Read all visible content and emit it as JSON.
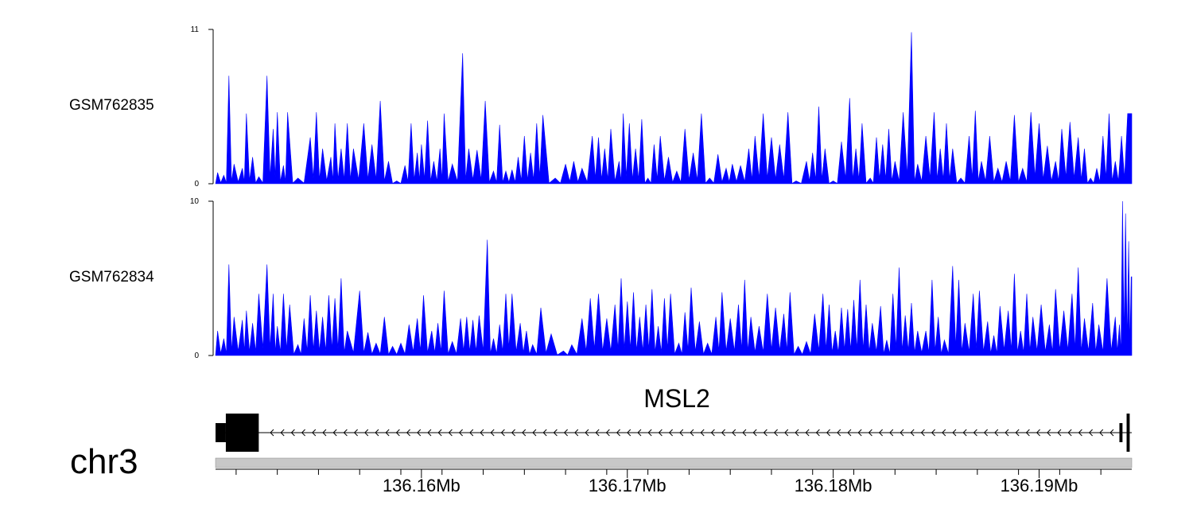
{
  "chart_data": {
    "type": "area",
    "chromosome": "chr3",
    "gene": "MSL2",
    "xlim": [
      136150000,
      136194500
    ],
    "x_ticks": [
      136160000,
      136170000,
      136180000,
      136190000
    ],
    "x_tick_labels": [
      "136.16Mb",
      "136.17Mb",
      "136.18Mb",
      "136.19Mb"
    ],
    "series_color": "#0000ff",
    "series": [
      {
        "name": "GSM762835",
        "ylim": [
          0,
          11
        ],
        "y_tick_labels": [
          "0",
          "11"
        ],
        "peaks": [
          [
            136150100,
            0.8
          ],
          [
            136150400,
            0.6
          ],
          [
            136150650,
            7.7
          ],
          [
            136150900,
            1.4
          ],
          [
            136151300,
            1.1
          ],
          [
            136151500,
            5.0
          ],
          [
            136151800,
            1.9
          ],
          [
            136152100,
            0.5
          ],
          [
            136152500,
            7.7
          ],
          [
            136152800,
            3.9
          ],
          [
            136153000,
            5.1
          ],
          [
            136153300,
            1.3
          ],
          [
            136153500,
            5.1
          ],
          [
            136154000,
            0.4
          ],
          [
            136154600,
            3.3
          ],
          [
            136154900,
            5.1
          ],
          [
            136155200,
            2.5
          ],
          [
            136155600,
            1.9
          ],
          [
            136155800,
            4.3
          ],
          [
            136156100,
            2.5
          ],
          [
            136156400,
            4.3
          ],
          [
            136156700,
            2.5
          ],
          [
            136157200,
            4.3
          ],
          [
            136157600,
            2.8
          ],
          [
            136158000,
            5.9
          ],
          [
            136158400,
            1.6
          ],
          [
            136158800,
            0.2
          ],
          [
            136159200,
            1.3
          ],
          [
            136159500,
            4.3
          ],
          [
            136159800,
            2.2
          ],
          [
            136160000,
            2.8
          ],
          [
            136160300,
            4.5
          ],
          [
            136160600,
            1.6
          ],
          [
            136160900,
            2.5
          ],
          [
            136161100,
            5.0
          ],
          [
            136161500,
            1.4
          ],
          [
            136162000,
            9.3
          ],
          [
            136162300,
            2.5
          ],
          [
            136162700,
            2.4
          ],
          [
            136163100,
            5.9
          ],
          [
            136163500,
            0.9
          ],
          [
            136163800,
            4.2
          ],
          [
            136164100,
            0.9
          ],
          [
            136164400,
            1.0
          ],
          [
            136164700,
            1.9
          ],
          [
            136165000,
            3.4
          ],
          [
            136165300,
            2.2
          ],
          [
            136165600,
            4.3
          ],
          [
            136165900,
            4.9
          ],
          [
            136166500,
            0.4
          ],
          [
            136167000,
            1.4
          ],
          [
            136167400,
            1.6
          ],
          [
            136167800,
            1.1
          ],
          [
            136168300,
            3.4
          ],
          [
            136168600,
            3.3
          ],
          [
            136168900,
            2.5
          ],
          [
            136169200,
            3.9
          ],
          [
            136169600,
            1.6
          ],
          [
            136169800,
            5.0
          ],
          [
            136170100,
            4.3
          ],
          [
            136170400,
            2.5
          ],
          [
            136170700,
            4.6
          ],
          [
            136171000,
            0.4
          ],
          [
            136171300,
            2.8
          ],
          [
            136171600,
            3.4
          ],
          [
            136172000,
            1.9
          ],
          [
            136172400,
            0.9
          ],
          [
            136172800,
            3.9
          ],
          [
            136173200,
            2.2
          ],
          [
            136173600,
            5.0
          ],
          [
            136174000,
            0.4
          ],
          [
            136174400,
            2.1
          ],
          [
            136174800,
            1.1
          ],
          [
            136175100,
            1.4
          ],
          [
            136175500,
            1.3
          ],
          [
            136175900,
            2.5
          ],
          [
            136176200,
            3.4
          ],
          [
            136176600,
            5.0
          ],
          [
            136177000,
            3.3
          ],
          [
            136177400,
            2.8
          ],
          [
            136177800,
            5.1
          ],
          [
            136178200,
            0.2
          ],
          [
            136178700,
            1.6
          ],
          [
            136179000,
            2.2
          ],
          [
            136179300,
            5.5
          ],
          [
            136179600,
            2.5
          ],
          [
            136180000,
            0.2
          ],
          [
            136180400,
            3.0
          ],
          [
            136180800,
            6.1
          ],
          [
            136181100,
            2.5
          ],
          [
            136181400,
            4.3
          ],
          [
            136181800,
            0.4
          ],
          [
            136182100,
            3.3
          ],
          [
            136182400,
            2.8
          ],
          [
            136182700,
            3.9
          ],
          [
            136183000,
            1.6
          ],
          [
            136183400,
            5.1
          ],
          [
            136183800,
            10.8
          ],
          [
            136184100,
            1.4
          ],
          [
            136184500,
            3.4
          ],
          [
            136184900,
            5.1
          ],
          [
            136185200,
            2.5
          ],
          [
            136185500,
            4.3
          ],
          [
            136185800,
            2.5
          ],
          [
            136186200,
            0.4
          ],
          [
            136186600,
            3.4
          ],
          [
            136186900,
            5.2
          ],
          [
            136187200,
            1.6
          ],
          [
            136187600,
            3.4
          ],
          [
            136188000,
            1.1
          ],
          [
            136188400,
            1.6
          ],
          [
            136188800,
            4.9
          ],
          [
            136189200,
            1.1
          ],
          [
            136189600,
            5.1
          ],
          [
            136190000,
            4.3
          ],
          [
            136190400,
            2.7
          ],
          [
            136190800,
            1.6
          ],
          [
            136191100,
            3.9
          ],
          [
            136191500,
            4.4
          ],
          [
            136191900,
            3.3
          ],
          [
            136192200,
            2.5
          ],
          [
            136192500,
            0.4
          ],
          [
            136192800,
            1.1
          ],
          [
            136193100,
            3.4
          ],
          [
            136193400,
            5.0
          ],
          [
            136193700,
            1.6
          ],
          [
            136194000,
            3.4
          ],
          [
            136194300,
            5.0
          ]
        ]
      },
      {
        "name": "GSM762834",
        "ylim": [
          0,
          10
        ],
        "y_tick_labels": [
          "0",
          "10"
        ],
        "peaks": [
          [
            136150100,
            1.6
          ],
          [
            136150400,
            1.1
          ],
          [
            136150650,
            5.9
          ],
          [
            136150900,
            2.5
          ],
          [
            136151300,
            2.3
          ],
          [
            136151500,
            2.9
          ],
          [
            136151800,
            2.1
          ],
          [
            136152100,
            4.0
          ],
          [
            136152500,
            5.9
          ],
          [
            136152800,
            4.0
          ],
          [
            136153000,
            1.9
          ],
          [
            136153300,
            4.0
          ],
          [
            136153600,
            3.3
          ],
          [
            136154000,
            0.7
          ],
          [
            136154300,
            2.4
          ],
          [
            136154600,
            3.9
          ],
          [
            136154900,
            2.9
          ],
          [
            136155200,
            2.5
          ],
          [
            136155500,
            3.9
          ],
          [
            136155800,
            3.7
          ],
          [
            136156100,
            5.0
          ],
          [
            136156400,
            1.6
          ],
          [
            136157000,
            4.2
          ],
          [
            136157400,
            1.5
          ],
          [
            136157800,
            0.8
          ],
          [
            136158200,
            2.5
          ],
          [
            136158600,
            0.6
          ],
          [
            136159000,
            0.8
          ],
          [
            136159400,
            2.0
          ],
          [
            136159800,
            2.4
          ],
          [
            136160100,
            3.9
          ],
          [
            136160500,
            1.6
          ],
          [
            136160800,
            2.1
          ],
          [
            136161100,
            4.2
          ],
          [
            136161500,
            0.9
          ],
          [
            136161900,
            2.4
          ],
          [
            136162200,
            2.5
          ],
          [
            136162500,
            2.3
          ],
          [
            136162800,
            2.6
          ],
          [
            136163200,
            7.5
          ],
          [
            136163500,
            1.1
          ],
          [
            136163800,
            2.0
          ],
          [
            136164100,
            4.0
          ],
          [
            136164400,
            4.0
          ],
          [
            136164800,
            2.1
          ],
          [
            136165100,
            1.6
          ],
          [
            136165400,
            0.7
          ],
          [
            136165800,
            3.1
          ],
          [
            136166300,
            1.4
          ],
          [
            136166900,
            0.3
          ],
          [
            136167300,
            0.7
          ],
          [
            136167800,
            2.4
          ],
          [
            136168200,
            3.7
          ],
          [
            136168600,
            4.0
          ],
          [
            136169000,
            2.4
          ],
          [
            136169400,
            3.3
          ],
          [
            136169700,
            5.0
          ],
          [
            136170000,
            3.5
          ],
          [
            136170300,
            4.1
          ],
          [
            136170600,
            2.5
          ],
          [
            136170900,
            3.3
          ],
          [
            136171200,
            4.3
          ],
          [
            136171500,
            1.9
          ],
          [
            136171800,
            3.7
          ],
          [
            136172100,
            4.0
          ],
          [
            136172500,
            0.8
          ],
          [
            136172800,
            2.8
          ],
          [
            136173100,
            4.4
          ],
          [
            136173500,
            2.2
          ],
          [
            136173900,
            0.8
          ],
          [
            136174300,
            2.5
          ],
          [
            136174600,
            4.1
          ],
          [
            136175000,
            2.4
          ],
          [
            136175400,
            3.3
          ],
          [
            136175700,
            4.9
          ],
          [
            136176000,
            2.5
          ],
          [
            136176400,
            1.9
          ],
          [
            136176800,
            4.0
          ],
          [
            136177200,
            3.1
          ],
          [
            136177600,
            2.7
          ],
          [
            136177900,
            4.1
          ],
          [
            136178300,
            0.6
          ],
          [
            136178700,
            0.9
          ],
          [
            136179100,
            2.7
          ],
          [
            136179500,
            4.0
          ],
          [
            136179800,
            3.3
          ],
          [
            136180100,
            1.6
          ],
          [
            136180400,
            3.1
          ],
          [
            136180700,
            3.0
          ],
          [
            136181000,
            3.6
          ],
          [
            136181300,
            4.9
          ],
          [
            136181600,
            3.3
          ],
          [
            136181900,
            2.1
          ],
          [
            136182300,
            3.2
          ],
          [
            136182600,
            1.0
          ],
          [
            136182900,
            4.0
          ],
          [
            136183200,
            5.7
          ],
          [
            136183500,
            2.6
          ],
          [
            136183800,
            3.4
          ],
          [
            136184100,
            1.6
          ],
          [
            136184500,
            1.6
          ],
          [
            136184800,
            4.9
          ],
          [
            136185100,
            2.5
          ],
          [
            136185400,
            1.0
          ],
          [
            136185800,
            5.8
          ],
          [
            136186100,
            4.9
          ],
          [
            136186400,
            2.1
          ],
          [
            136186800,
            4.0
          ],
          [
            136187100,
            4.2
          ],
          [
            136187500,
            2.2
          ],
          [
            136187800,
            1.3
          ],
          [
            136188100,
            3.2
          ],
          [
            136188500,
            2.9
          ],
          [
            136188800,
            5.3
          ],
          [
            136189100,
            1.6
          ],
          [
            136189400,
            4.0
          ],
          [
            136189700,
            2.5
          ],
          [
            136190100,
            3.3
          ],
          [
            136190500,
            2.0
          ],
          [
            136190800,
            4.3
          ],
          [
            136191200,
            2.9
          ],
          [
            136191600,
            4.0
          ],
          [
            136191900,
            5.7
          ],
          [
            136192200,
            2.4
          ],
          [
            136192600,
            3.4
          ],
          [
            136192900,
            2.0
          ],
          [
            136193300,
            5.0
          ],
          [
            136193700,
            2.5
          ],
          [
            136193900,
            2.0
          ],
          [
            136194050,
            10.0
          ],
          [
            136194200,
            9.2
          ],
          [
            136194350,
            7.4
          ],
          [
            136194470,
            5.1
          ]
        ]
      }
    ],
    "gene_model": {
      "strand": "-",
      "start": 136150000,
      "end": 136194500,
      "exons": [
        {
          "start": 136150000,
          "end": 136150500,
          "type": "utr"
        },
        {
          "start": 136150500,
          "end": 136152100,
          "type": "cds"
        },
        {
          "start": 136193900,
          "end": 136194050,
          "type": "utr"
        },
        {
          "start": 136194250,
          "end": 136194400,
          "type": "cds"
        }
      ]
    }
  }
}
